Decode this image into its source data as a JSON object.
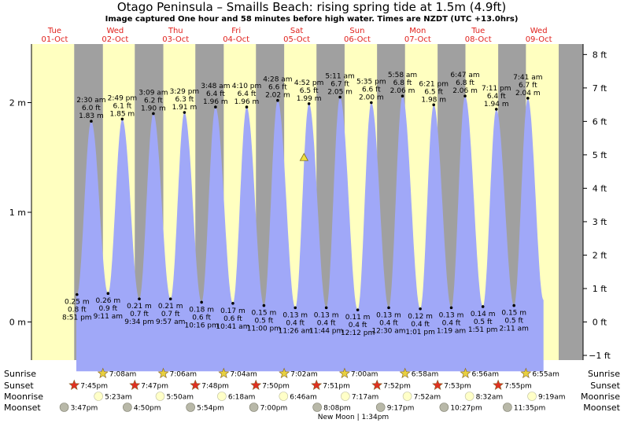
{
  "title": "Otago Peninsula – Smaills Beach: rising  spring tide at 1.5m (4.9ft)",
  "subtitle": "Image captured One hour and 58 minutes before high water. Times are NZDT (UTC +13.0hrs)",
  "colors": {
    "day_band": "#ffffc0",
    "night_band": "#a0a0a0",
    "tide_fill": "#a0a8f8",
    "day_label": "#e0201b",
    "sunrise_icon": "#e8d040",
    "sunset_icon": "#e03020",
    "moonrise_icon": "#ffffc8",
    "moonset_icon": "#b8b8a8"
  },
  "days": [
    {
      "name": "Tue",
      "date": "01-Oct"
    },
    {
      "name": "Wed",
      "date": "02-Oct"
    },
    {
      "name": "Thu",
      "date": "03-Oct"
    },
    {
      "name": "Fri",
      "date": "04-Oct"
    },
    {
      "name": "Sat",
      "date": "05-Oct"
    },
    {
      "name": "Sun",
      "date": "06-Oct"
    },
    {
      "name": "Mon",
      "date": "07-Oct"
    },
    {
      "name": "Tue",
      "date": "08-Oct"
    },
    {
      "name": "Wed",
      "date": "09-Oct"
    }
  ],
  "chart_data": {
    "type": "area",
    "series_note": "tide height over time",
    "y_left_ticks": [
      "0 m",
      "1 m",
      "2 m"
    ],
    "y_right_ticks": [
      "−1 ft",
      "0 ft",
      "1 ft",
      "2 ft",
      "3 ft",
      "4 ft",
      "5 ft",
      "6 ft",
      "7 ft",
      "8 ft"
    ],
    "ylim_m": [
      -0.55,
      2.6
    ],
    "current": {
      "day": 4,
      "time": "~2:54 pm",
      "height_m": 1.5
    },
    "extremes": [
      {
        "type": "low",
        "day": 0,
        "time": "8:51 pm",
        "m": 0.25,
        "ft": 0.8
      },
      {
        "type": "high",
        "day": 1,
        "time": "2:30 am",
        "m": 1.83,
        "ft": 6.0
      },
      {
        "type": "low",
        "day": 1,
        "time": "9:11 am",
        "m": 0.26,
        "ft": 0.9
      },
      {
        "type": "high",
        "day": 1,
        "time": "2:49 pm",
        "m": 1.85,
        "ft": 6.1
      },
      {
        "type": "low",
        "day": 1,
        "time": "9:34 pm",
        "m": 0.21,
        "ft": 0.7
      },
      {
        "type": "high",
        "day": 2,
        "time": "3:09 am",
        "m": 1.9,
        "ft": 6.2
      },
      {
        "type": "low",
        "day": 2,
        "time": "9:57 am",
        "m": 0.21,
        "ft": 0.7
      },
      {
        "type": "high",
        "day": 2,
        "time": "3:29 pm",
        "m": 1.91,
        "ft": 6.3
      },
      {
        "type": "low",
        "day": 2,
        "time": "10:16 pm",
        "m": 0.18,
        "ft": 0.6
      },
      {
        "type": "high",
        "day": 3,
        "time": "3:48 am",
        "m": 1.96,
        "ft": 6.4
      },
      {
        "type": "low",
        "day": 3,
        "time": "10:41 am",
        "m": 0.17,
        "ft": 0.6
      },
      {
        "type": "high",
        "day": 3,
        "time": "4:10 pm",
        "m": 1.96,
        "ft": 6.4
      },
      {
        "type": "low",
        "day": 3,
        "time": "11:00 pm",
        "m": 0.15,
        "ft": 0.5
      },
      {
        "type": "high",
        "day": 4,
        "time": "4:28 am",
        "m": 2.02,
        "ft": 6.6
      },
      {
        "type": "low",
        "day": 4,
        "time": "11:26 am",
        "m": 0.13,
        "ft": 0.4
      },
      {
        "type": "high",
        "day": 4,
        "time": "4:52 pm",
        "m": 1.99,
        "ft": 6.5
      },
      {
        "type": "low",
        "day": 4,
        "time": "11:44 pm",
        "m": 0.13,
        "ft": 0.4
      },
      {
        "type": "high",
        "day": 5,
        "time": "5:11 am",
        "m": 2.05,
        "ft": 6.7
      },
      {
        "type": "low",
        "day": 5,
        "time": "12:12 pm",
        "m": 0.11,
        "ft": 0.4
      },
      {
        "type": "high",
        "day": 5,
        "time": "5:35 pm",
        "m": 2.0,
        "ft": 6.6
      },
      {
        "type": "low",
        "day": 6,
        "time": "12:30 am",
        "m": 0.13,
        "ft": 0.4
      },
      {
        "type": "high",
        "day": 6,
        "time": "5:58 am",
        "m": 2.06,
        "ft": 6.8
      },
      {
        "type": "low",
        "day": 6,
        "time": "1:01 pm",
        "m": 0.12,
        "ft": 0.4
      },
      {
        "type": "high",
        "day": 6,
        "time": "6:21 pm",
        "m": 1.98,
        "ft": 6.5
      },
      {
        "type": "low",
        "day": 7,
        "time": "1:19 am",
        "m": 0.13,
        "ft": 0.4
      },
      {
        "type": "high",
        "day": 7,
        "time": "6:47 am",
        "m": 2.06,
        "ft": 6.8
      },
      {
        "type": "low",
        "day": 7,
        "time": "1:51 pm",
        "m": 0.14,
        "ft": 0.5
      },
      {
        "type": "high",
        "day": 7,
        "time": "7:11 pm",
        "m": 1.94,
        "ft": 6.4
      },
      {
        "type": "low",
        "day": 8,
        "time": "2:11 am",
        "m": 0.15,
        "ft": 0.5
      },
      {
        "type": "high",
        "day": 8,
        "time": "7:41 am",
        "m": 2.04,
        "ft": 6.7
      }
    ]
  },
  "astro": {
    "row_labels": [
      "Sunrise",
      "Sunset",
      "Moonrise",
      "Moonset"
    ],
    "sunrise": [
      {
        "day": 1,
        "time": "7:08am"
      },
      {
        "day": 2,
        "time": "7:06am"
      },
      {
        "day": 3,
        "time": "7:04am"
      },
      {
        "day": 4,
        "time": "7:02am"
      },
      {
        "day": 5,
        "time": "7:00am"
      },
      {
        "day": 6,
        "time": "6:58am"
      },
      {
        "day": 7,
        "time": "6:56am"
      },
      {
        "day": 8,
        "time": "6:55am"
      }
    ],
    "sunset": [
      {
        "day": 0,
        "time": "7:45pm"
      },
      {
        "day": 1,
        "time": "7:47pm"
      },
      {
        "day": 2,
        "time": "7:48pm"
      },
      {
        "day": 3,
        "time": "7:50pm"
      },
      {
        "day": 4,
        "time": "7:51pm"
      },
      {
        "day": 5,
        "time": "7:52pm"
      },
      {
        "day": 6,
        "time": "7:53pm"
      },
      {
        "day": 7,
        "time": "7:55pm"
      }
    ],
    "moonrise": [
      {
        "day": 1,
        "time": "5:23am"
      },
      {
        "day": 2,
        "time": "5:50am"
      },
      {
        "day": 3,
        "time": "6:18am"
      },
      {
        "day": 4,
        "time": "6:46am"
      },
      {
        "day": 5,
        "time": "7:17am"
      },
      {
        "day": 6,
        "time": "7:52am"
      },
      {
        "day": 7,
        "time": "8:32am"
      },
      {
        "day": 8,
        "time": "9:19am"
      }
    ],
    "moonset": [
      {
        "day": 0,
        "time": "3:47pm"
      },
      {
        "day": 1,
        "time": "4:50pm"
      },
      {
        "day": 2,
        "time": "5:54pm"
      },
      {
        "day": 3,
        "time": "7:00pm"
      },
      {
        "day": 4,
        "time": "8:08pm"
      },
      {
        "day": 5,
        "time": "9:17pm"
      },
      {
        "day": 6,
        "time": "10:27pm"
      },
      {
        "day": 7,
        "time": "11:35pm"
      }
    ],
    "new_moon": "New Moon | 1:34pm"
  }
}
